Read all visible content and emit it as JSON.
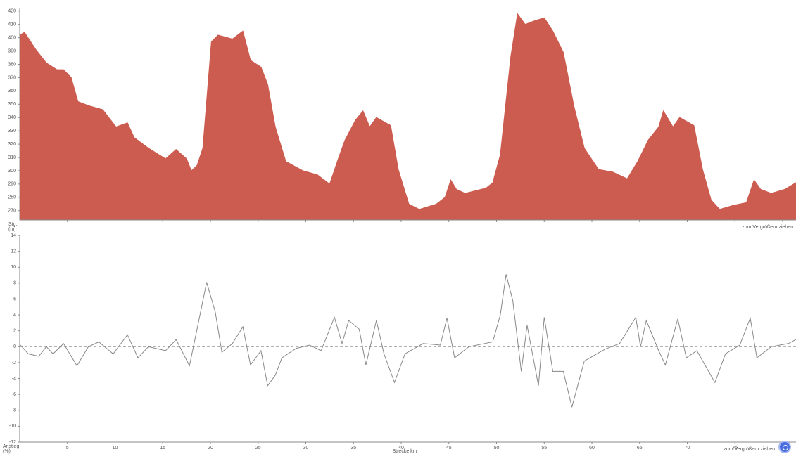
{
  "chart_data": [
    {
      "type": "area",
      "y_label": "Stg.\n(m)",
      "hint": "zum Vergrößern ziehen",
      "color": "#cd5c50",
      "x": [
        0,
        0.5,
        1.7,
        2.8,
        3.9,
        4.6,
        5.4,
        6.1,
        7.2,
        8.7,
        10.1,
        11.3,
        12,
        13.5,
        15.3,
        16.4,
        17.5,
        18,
        18.6,
        19.2,
        20.1,
        20.8,
        22.3,
        23.4,
        24.2,
        25.3,
        26,
        26.8,
        27.9,
        29.7,
        31.2,
        32.5,
        33.4,
        34.1,
        35.2,
        36,
        36.7,
        37.4,
        38.9,
        39.7,
        40.8,
        41.9,
        43.7,
        44.6,
        45.2,
        45.8,
        46.7,
        48.9,
        49.6,
        50.4,
        51.5,
        52.2,
        53,
        54.1,
        55,
        55.9,
        57,
        58.1,
        59.2,
        60.7,
        62.2,
        63.7,
        64.8,
        65.9,
        67,
        67.5,
        68.5,
        69.2,
        70.7,
        71.6,
        72.5,
        73.4,
        74.8,
        76.2,
        77,
        77.7,
        78.8,
        80.2,
        81.4
      ],
      "y": [
        402,
        404,
        391,
        381,
        376,
        376,
        370,
        352,
        349,
        346,
        333,
        336,
        325,
        317,
        309,
        316,
        309,
        300,
        304,
        317,
        397,
        402,
        399,
        405,
        383,
        378,
        365,
        333,
        307,
        300,
        297,
        290,
        309,
        323,
        338,
        345,
        333,
        340,
        334,
        301,
        275,
        271,
        275,
        280,
        293,
        286,
        283,
        287,
        291,
        312,
        386,
        418,
        410,
        413,
        415,
        405,
        389,
        349,
        317,
        301,
        299,
        294,
        307,
        323,
        333,
        345,
        333,
        340,
        334,
        301,
        278,
        271,
        274,
        276,
        293,
        286,
        283,
        286,
        291
      ],
      "xlim": [
        0,
        81.4
      ],
      "ylim": [
        263,
        422
      ],
      "xticks": [
        5,
        10,
        15,
        20,
        25,
        30,
        35,
        40,
        45,
        50,
        55,
        60,
        65,
        70,
        75,
        80
      ],
      "yticks": [
        270,
        280,
        290,
        300,
        310,
        320,
        330,
        340,
        350,
        360,
        370,
        380,
        390,
        400,
        410,
        420
      ]
    },
    {
      "type": "line",
      "y_label": "Anstieg\n(%)",
      "x_label": "Strecke km",
      "hint": "zum Vergrößern ziehen",
      "color": "#888888",
      "zero_line": true,
      "x": [
        0,
        0.9,
        2,
        2.8,
        3.5,
        4.6,
        6,
        7.2,
        8.3,
        9.8,
        11.3,
        12.4,
        13.5,
        15.3,
        16.4,
        17.8,
        18.6,
        19.6,
        20.5,
        21.2,
        22.3,
        23.4,
        24.2,
        25.3,
        26,
        26.8,
        27.5,
        29,
        30.4,
        31.6,
        33,
        33.8,
        34.5,
        35.6,
        36.3,
        37.4,
        38.2,
        39.3,
        40.4,
        42.3,
        44.1,
        44.8,
        45.6,
        47.1,
        49.6,
        50.4,
        51,
        51.7,
        52.6,
        53.2,
        54.4,
        55,
        55.9,
        57,
        57.9,
        59.2,
        61.4,
        62.9,
        64.6,
        65.1,
        65.7,
        67,
        67.7,
        69,
        69.9,
        71,
        72.9,
        74,
        75.5,
        76.6,
        77.3,
        78.8,
        80.6,
        81.4
      ],
      "y": [
        0.3,
        -0.9,
        -1.2,
        0,
        -0.9,
        0.4,
        -2.4,
        0,
        0.6,
        -0.9,
        1.5,
        -1.4,
        0,
        -0.5,
        0.9,
        -2.4,
        2.2,
        8.1,
        4.4,
        -0.7,
        0.4,
        2.5,
        -2.3,
        -0.5,
        -4.9,
        -3.6,
        -1.4,
        -0.2,
        0.2,
        -0.5,
        3.7,
        0.4,
        3.3,
        2.2,
        -2.3,
        3.3,
        -0.9,
        -4.5,
        -0.9,
        0.4,
        0.2,
        3.6,
        -1.4,
        0,
        0.6,
        4,
        9.1,
        5.8,
        -3.1,
        2.7,
        -4.9,
        3.7,
        -3.1,
        -3.1,
        -7.6,
        -1.8,
        -0.3,
        0.4,
        3.7,
        0,
        3.3,
        -0.5,
        -2.3,
        3.5,
        -1.4,
        -0.5,
        -4.5,
        -0.9,
        0.2,
        3.6,
        -1.4,
        0,
        0.4,
        0.9
      ],
      "xlim": [
        0,
        81.4
      ],
      "ylim": [
        -12,
        14
      ],
      "xticks": [
        5,
        10,
        15,
        20,
        25,
        30,
        35,
        40,
        45,
        50,
        55,
        60,
        65,
        70,
        75
      ],
      "yticks": [
        -12,
        -10,
        -8,
        -6,
        -4,
        -2,
        0,
        2,
        4,
        6,
        8,
        10,
        12,
        14
      ]
    }
  ]
}
